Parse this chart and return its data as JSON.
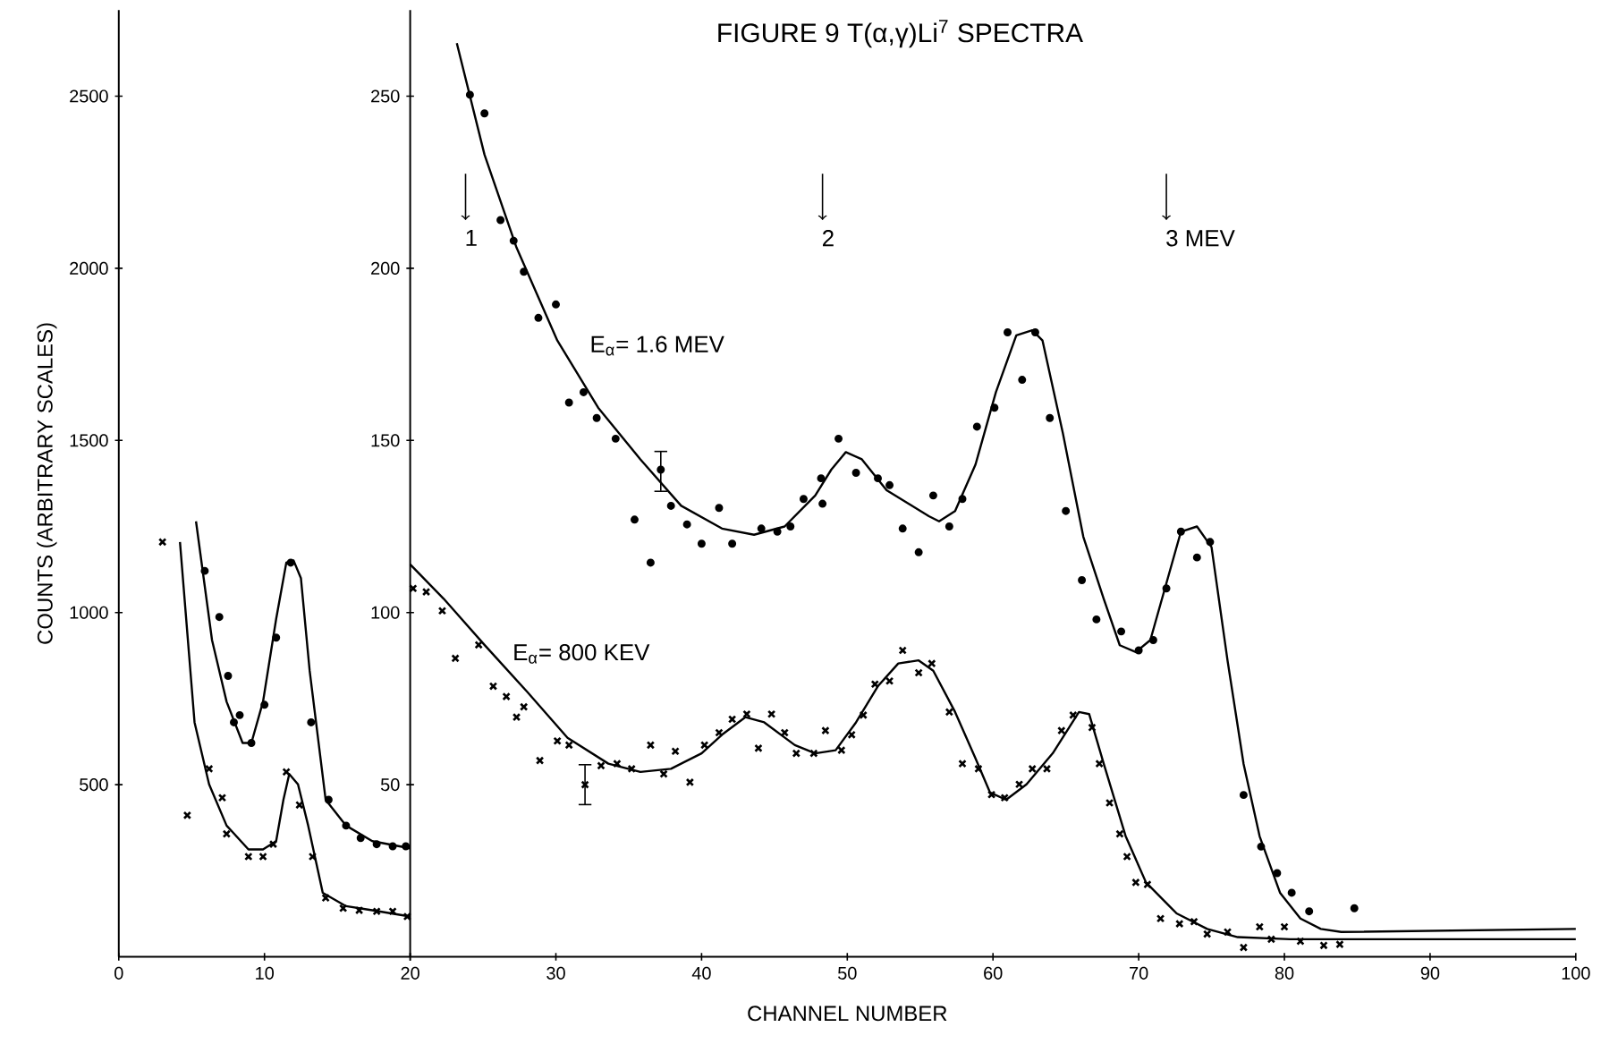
{
  "chart_data": [
    {
      "type": "line",
      "ylabel": "COUNTS (ARBITRARY SCALES)",
      "xlim": [
        0,
        20
      ],
      "ylim": [
        0,
        2750
      ],
      "xticks": [
        0,
        10,
        {
          "value": 20,
          "label": null
        }
      ],
      "yticks": [
        500,
        1000,
        1500,
        2000,
        2500
      ],
      "series": [
        {
          "color": "#000000",
          "marker": "none",
          "x": [
            5.3,
            6.4,
            7.4,
            8.5,
            9.1,
            9.9,
            10.8,
            11.5,
            12.0,
            12.5,
            13.1,
            14.2,
            15.6,
            17.4,
            20
          ],
          "values": [
            1265,
            920,
            741,
            621,
            621,
            741,
            981,
            1145,
            1151,
            1100,
            831,
            456,
            381,
            336,
            315
          ]
        },
        {
          "type": "scatter",
          "color": "#000000",
          "marker": "circle",
          "x": [
            5.9,
            6.9,
            7.5,
            7.9,
            8.3,
            9.1,
            10.0,
            10.8,
            11.8,
            13.2,
            14.4,
            15.6,
            16.6,
            17.7,
            18.8,
            19.7
          ],
          "values": [
            1121,
            987,
            816,
            681,
            702,
            621,
            732,
            927,
            1145,
            681,
            456,
            381,
            345,
            327,
            321,
            321
          ]
        },
        {
          "color": "#000000",
          "marker": "none",
          "x": [
            4.2,
            5.2,
            6.2,
            7.4,
            8.9,
            9.9,
            10.8,
            11.3,
            11.7,
            12.3,
            13.0,
            14.0,
            15.6,
            17.4,
            20
          ],
          "values": [
            1205,
            681,
            501,
            381,
            312,
            312,
            336,
            456,
            531,
            501,
            381,
            186,
            147,
            135,
            117
          ]
        },
        {
          "type": "scatter",
          "color": "#000000",
          "marker": "cross",
          "x": [
            3.0,
            4.7,
            6.2,
            7.1,
            7.4,
            8.9,
            9.9,
            10.6,
            11.5,
            12.4,
            13.3,
            14.2,
            15.4,
            16.5,
            17.7,
            18.8,
            19.8
          ],
          "values": [
            1205,
            411,
            546,
            462,
            357,
            291,
            291,
            327,
            537,
            441,
            291,
            171,
            141,
            135,
            132,
            132,
            117
          ]
        }
      ]
    },
    {
      "type": "line",
      "title": "FIGURE 9    T(α,γ)Li$^{7}$ SPECTRA",
      "xlabel": "CHANNEL NUMBER",
      "xlim": [
        20,
        100
      ],
      "ylim": [
        0,
        275
      ],
      "xticks": [
        20,
        30,
        40,
        50,
        60,
        70,
        80,
        90,
        100
      ],
      "yticks": [
        50,
        100,
        150,
        200,
        250
      ],
      "annotations": [
        "1",
        "2",
        "3 MEV"
      ],
      "series": [
        {
          "name": "E$_{α}$= 1.6 MEV",
          "color": "#000000",
          "marker": "none",
          "x": [
            23.2,
            25.1,
            27.3,
            30.1,
            32.9,
            35.8,
            38.6,
            41.4,
            43.6,
            45.7,
            47.8,
            48.9,
            49.9,
            51.0,
            52.7,
            55.6,
            56.3,
            57.4,
            58.8,
            60.2,
            61.6,
            62.7,
            63.4,
            64.8,
            66.2,
            67.6,
            68.7,
            69.8,
            70.8,
            71.9,
            72.9,
            74.0,
            75.0,
            76.1,
            77.2,
            78.3,
            79.7,
            81.1,
            82.5,
            83.9,
            100
          ],
          "values": [
            265.4,
            233,
            206,
            179,
            159.5,
            144.5,
            131,
            124.4,
            122.6,
            125,
            134,
            141.5,
            146.6,
            144.5,
            135.5,
            128,
            126.5,
            129.5,
            143,
            164,
            180.5,
            182,
            179,
            152,
            122,
            104,
            90.5,
            88.5,
            92,
            108.5,
            123.5,
            125,
            119,
            86,
            56,
            35,
            18.6,
            11.1,
            8.1,
            7.2,
            8.1
          ]
        },
        {
          "type": "scatter",
          "color": "#000000",
          "marker": "circle",
          "x": [
            24.1,
            25.1,
            26.2,
            27.1,
            27.8,
            28.8,
            30.0,
            30.9,
            31.9,
            32.8,
            34.1,
            35.4,
            36.5,
            37.2,
            37.9,
            39.0,
            40.0,
            41.2,
            42.1,
            44.1,
            45.2,
            46.1,
            47.0,
            48.2,
            48.3,
            49.4,
            50.6,
            52.1,
            52.9,
            53.8,
            54.9,
            55.9,
            57.0,
            57.9,
            58.9,
            60.1,
            61.0,
            62.0,
            62.9,
            63.9,
            65.0,
            66.1,
            67.1,
            68.8,
            70.0,
            71.0,
            71.9,
            72.9,
            74.0,
            74.9,
            77.2,
            78.4,
            79.5,
            80.5,
            81.7,
            84.8
          ],
          "values": [
            250.4,
            245,
            214,
            208,
            199,
            185.6,
            189.5,
            161,
            164,
            156.5,
            150.5,
            127,
            114.5,
            141.5,
            131,
            125.6,
            120,
            130.4,
            120,
            124.4,
            123.5,
            125,
            133,
            139,
            131.6,
            150.5,
            140.6,
            139,
            137,
            124.4,
            117.5,
            134,
            125,
            133,
            154,
            159.5,
            181.4,
            167.6,
            181.4,
            156.5,
            129.5,
            109.4,
            98,
            94.5,
            89,
            92,
            107,
            123.5,
            116,
            120.5,
            47,
            32,
            24.3,
            18.6,
            13.2,
            14.1
          ],
          "errors": [
            null,
            null,
            null,
            null,
            null,
            null,
            null,
            null,
            null,
            null,
            null,
            null,
            null,
            [
              135,
              147
            ],
            null,
            null,
            null,
            null,
            null,
            null,
            null,
            null,
            null,
            null,
            null,
            null,
            null,
            null,
            null,
            null,
            null,
            null,
            null,
            null,
            null,
            null,
            null,
            null,
            null,
            null,
            null,
            null,
            null,
            null,
            null,
            null,
            null,
            null,
            null,
            null,
            null,
            null,
            null,
            null,
            null,
            null
          ]
        },
        {
          "name": "E$_{α}$= 800 KEV",
          "color": "#000000",
          "marker": "none",
          "x": [
            20,
            22.3,
            25.1,
            28.0,
            30.8,
            33.6,
            35.8,
            37.9,
            40.0,
            41.4,
            43.0,
            44.3,
            46.4,
            47.8,
            49.2,
            50.6,
            52.1,
            53.5,
            54.9,
            55.9,
            57.4,
            58.8,
            59.8,
            60.9,
            62.3,
            64.1,
            65.9,
            66.6,
            67.6,
            69.1,
            70.5,
            72.6,
            74.7,
            76.8,
            80.4,
            100
          ],
          "values": [
            114,
            104,
            90.6,
            77.1,
            63.6,
            56.1,
            53.7,
            54.6,
            59.1,
            64.5,
            69.6,
            68.1,
            61.5,
            59.1,
            60,
            68.1,
            78.6,
            85.2,
            86.1,
            83.1,
            71.1,
            57.6,
            47.7,
            45.6,
            50.1,
            59.1,
            71.1,
            70.5,
            56.1,
            35.1,
            21.6,
            12.6,
            8.1,
            5.7,
            5.1,
            5.1
          ]
        },
        {
          "type": "scatter",
          "color": "#000000",
          "marker": "cross",
          "x": [
            20.2,
            21.1,
            22.2,
            23.1,
            24.7,
            25.7,
            26.6,
            27.3,
            27.8,
            28.9,
            30.1,
            30.9,
            32.0,
            33.1,
            34.2,
            35.2,
            36.5,
            37.4,
            38.2,
            39.2,
            40.2,
            41.2,
            42.1,
            43.1,
            43.9,
            44.8,
            45.7,
            46.5,
            47.7,
            48.5,
            49.6,
            50.3,
            51.1,
            51.9,
            52.9,
            53.8,
            54.9,
            55.8,
            57.0,
            57.9,
            59.0,
            59.9,
            60.8,
            61.8,
            62.7,
            63.7,
            64.7,
            65.5,
            66.8,
            67.3,
            68.0,
            68.7,
            69.2,
            69.8,
            70.6,
            71.5,
            72.8,
            73.8,
            74.7,
            76.1,
            77.2,
            78.3,
            79.1,
            80.0,
            81.1,
            82.7,
            83.8
          ],
          "values": [
            107,
            106,
            100.5,
            86.7,
            90.6,
            78.6,
            75.6,
            69.6,
            72.6,
            57,
            62.7,
            61.5,
            50,
            55.5,
            56.1,
            54.6,
            61.5,
            53.1,
            59.7,
            50.7,
            61.5,
            65.1,
            69,
            70.5,
            60.6,
            70.5,
            65.1,
            59.1,
            59.1,
            65.7,
            60,
            64.5,
            70.2,
            79.2,
            80.1,
            89,
            82.5,
            85.2,
            71.1,
            56.1,
            54.6,
            47.1,
            46.2,
            50.1,
            54.6,
            54.6,
            65.7,
            70.2,
            66.6,
            56.1,
            44.7,
            35.7,
            29.1,
            21.6,
            21,
            11.1,
            9.6,
            10.2,
            6.6,
            7.2,
            2.7,
            8.7,
            5.1,
            8.7,
            4.5,
            3.3,
            3.6
          ],
          "errors": [
            null,
            null,
            null,
            null,
            null,
            null,
            null,
            null,
            null,
            null,
            null,
            null,
            [
              44,
              56
            ],
            null,
            null,
            null,
            null,
            null,
            null,
            null,
            null,
            null,
            null,
            null,
            null,
            null,
            null,
            null,
            null,
            null,
            null,
            null,
            null,
            null,
            null,
            null,
            null,
            null,
            null,
            null,
            null,
            null,
            null,
            null,
            null,
            null,
            null,
            null,
            null,
            null,
            null,
            null,
            null,
            null,
            null,
            null,
            null,
            null,
            null,
            null,
            null,
            null,
            null,
            null,
            null,
            null,
            null
          ]
        }
      ]
    }
  ]
}
